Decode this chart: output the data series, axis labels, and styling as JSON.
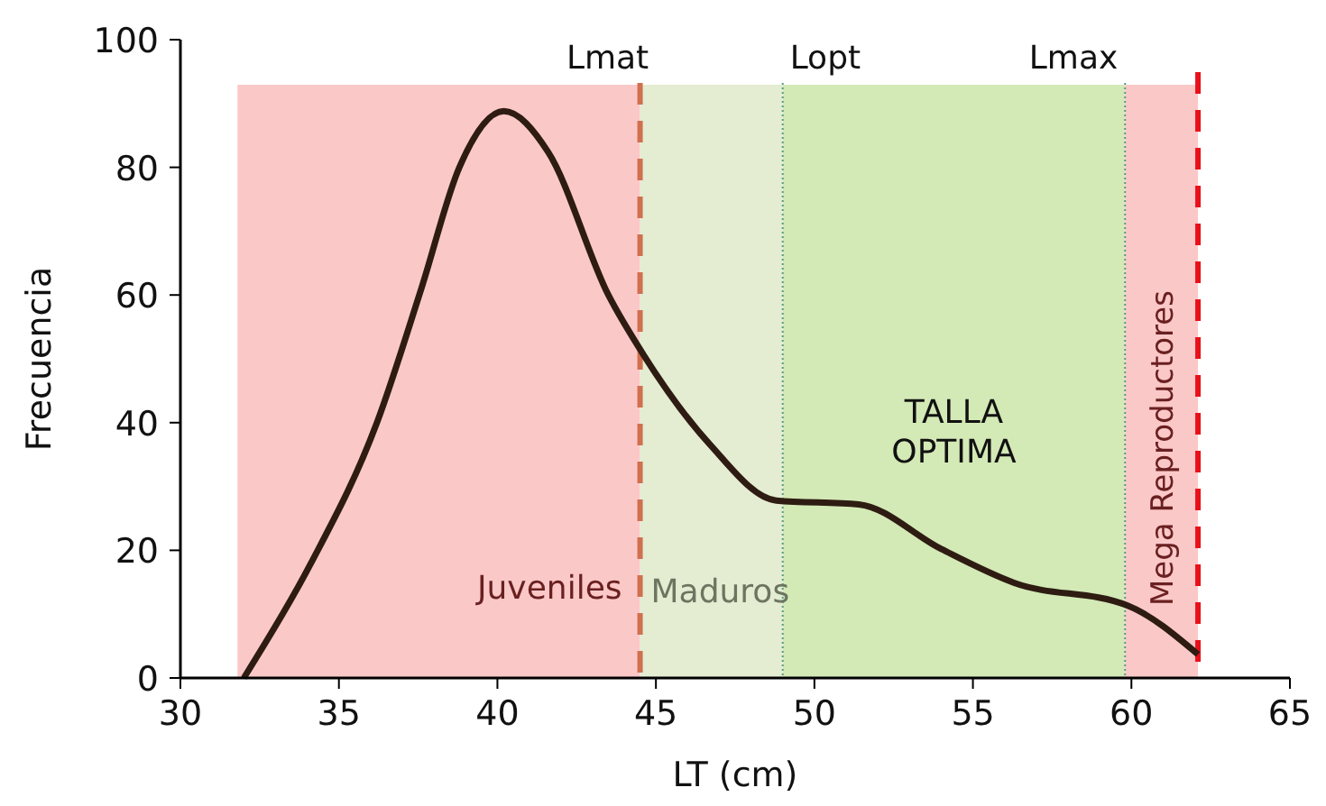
{
  "chart_data": {
    "type": "line",
    "xlabel": "LT (cm)",
    "ylabel": "Frecuencia",
    "x": [
      32.0,
      34.1,
      36.2,
      37.6,
      38.8,
      40.2,
      41.6,
      43.5,
      44.6,
      46.7,
      48.8,
      51.4,
      54.0,
      56.3,
      59.9,
      62.1
    ],
    "series": [
      {
        "color": "#2e1c12",
        "values": [
          0,
          17.8,
          40,
          61,
          80,
          88.8,
          82.4,
          60,
          50.7,
          36.6,
          27.8,
          27.2,
          20.2,
          14.9,
          11.3,
          3.7
        ]
      }
    ],
    "xlim": [
      30,
      65
    ],
    "xticks": [
      30,
      35,
      40,
      45,
      50,
      55,
      60,
      65
    ],
    "ylim": [
      0,
      100
    ],
    "yticks": [
      0,
      20,
      40,
      60,
      80,
      100
    ],
    "grid": false,
    "marker": "none",
    "line_style": "solid",
    "bands": [
      {
        "axis": "x",
        "from": 31.8,
        "to": 44.5,
        "label": "Juveniles",
        "color": "#fbc8c8"
      },
      {
        "axis": "x",
        "from": 44.5,
        "to": 49.0,
        "label": "Maduros",
        "color": "#e4ecd2"
      },
      {
        "axis": "x",
        "from": 49.0,
        "to": 59.8,
        "label": "TALLA OPTIMA",
        "color": "#d3e9b6"
      },
      {
        "axis": "x",
        "from": 59.8,
        "to": 62.1,
        "label": "Mega Reproductores",
        "color": "#fbc8c8"
      }
    ],
    "ref_lines": [
      {
        "axis": "x",
        "value": 44.5,
        "label": "Lmat",
        "color": "#d0704f",
        "line_style": "dashed"
      },
      {
        "axis": "x",
        "value": 49.0,
        "label": "Lopt",
        "color": "#5a9a8a",
        "line_style": "dotted"
      },
      {
        "axis": "x",
        "value": 59.8,
        "label": "Lmax",
        "color": "#5a9a8a",
        "line_style": "dotted"
      },
      {
        "axis": "x",
        "value": 62.1,
        "label": null,
        "color": "#e8101a",
        "line_style": "dashed"
      }
    ]
  }
}
